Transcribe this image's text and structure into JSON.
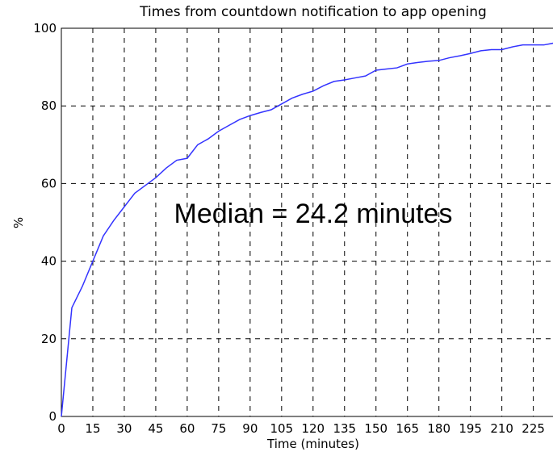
{
  "chart_data": {
    "type": "line",
    "title": "Times from countdown notification to app opening",
    "x_label": "Time (minutes)",
    "y_label": "%",
    "annotation": "Median = 24.2 minutes",
    "x": [
      0,
      5,
      10,
      15,
      20,
      25,
      30,
      35,
      40,
      45,
      50,
      55,
      60,
      65,
      70,
      75,
      80,
      85,
      90,
      95,
      100,
      105,
      110,
      115,
      120,
      125,
      130,
      135,
      140,
      145,
      150,
      155,
      160,
      165,
      170,
      175,
      180,
      185,
      190,
      195,
      200,
      205,
      210,
      215,
      220,
      225,
      230,
      235
    ],
    "values": [
      0,
      28,
      33.5,
      40,
      46.5,
      50.5,
      54,
      57.5,
      59.5,
      61.5,
      64,
      66,
      66.5,
      70,
      71.5,
      73.5,
      75,
      76.5,
      77.5,
      78.3,
      79,
      80.5,
      82,
      83,
      83.8,
      85.2,
      86.3,
      86.7,
      87.2,
      87.7,
      89.2,
      89.5,
      89.8,
      90.8,
      91.2,
      91.5,
      91.7,
      92.4,
      92.9,
      93.5,
      94.2,
      94.5,
      94.5,
      95.2,
      95.7,
      95.7,
      95.7,
      96.2
    ],
    "color": "#3333ff",
    "xlim": [
      0,
      234
    ],
    "ylim": [
      0,
      100
    ],
    "xticks": [
      0,
      15,
      30,
      45,
      60,
      75,
      90,
      105,
      120,
      135,
      150,
      165,
      180,
      195,
      210,
      225
    ],
    "yticks": [
      0,
      20,
      40,
      60,
      80,
      100
    ],
    "grid": true
  }
}
